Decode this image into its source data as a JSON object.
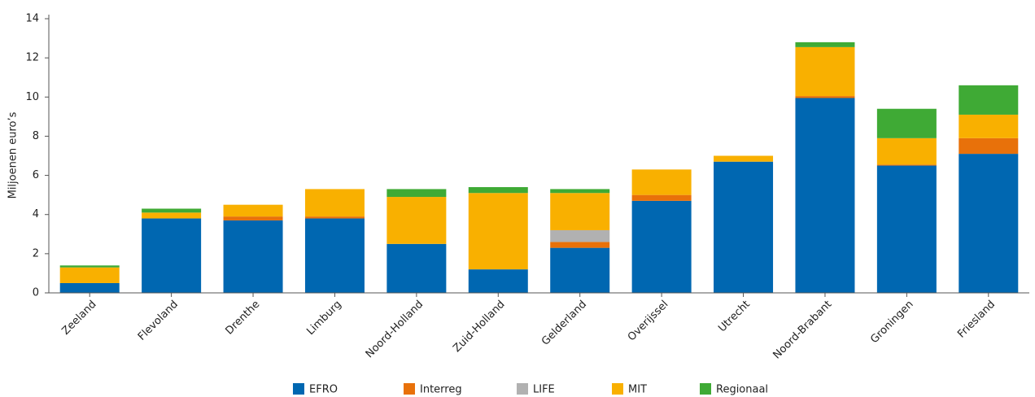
{
  "chart_data": {
    "type": "stacked_bar",
    "ylabel": "Miljoenen euro’s",
    "categories": [
      "Zeeland",
      "Flevoland",
      "Drenthe",
      "Limburg",
      "Noord-Holland",
      "Zuid-Holland",
      "Gelderland",
      "Overijssel",
      "Utrecht",
      "Noord-Brabant",
      "Groningen",
      "Friesland"
    ],
    "series": [
      {
        "name": "EFRO",
        "color": "#0067b1",
        "values": [
          0.5,
          3.8,
          3.7,
          3.8,
          2.5,
          1.2,
          2.3,
          4.7,
          6.7,
          9.95,
          6.5,
          7.1
        ]
      },
      {
        "name": "Interreg",
        "color": "#e8710a",
        "values": [
          0,
          0,
          0.2,
          0.1,
          0,
          0,
          0.3,
          0.3,
          0,
          0.1,
          0.05,
          0.8
        ]
      },
      {
        "name": "LIFE",
        "color": "#b1b1b1",
        "values": [
          0,
          0,
          0,
          0,
          0,
          0,
          0.6,
          0,
          0,
          0,
          0,
          0
        ]
      },
      {
        "name": "MIT",
        "color": "#f9b000",
        "values": [
          0.8,
          0.3,
          0.6,
          1.4,
          2.4,
          3.9,
          1.9,
          1.3,
          0.3,
          2.5,
          1.35,
          1.2
        ]
      },
      {
        "name": "Regionaal",
        "color": "#3faa35",
        "values": [
          0.1,
          0.2,
          0,
          0,
          0.4,
          0.3,
          0.2,
          0,
          0,
          0.25,
          1.5,
          1.5
        ]
      }
    ],
    "ylim": [
      0,
      14
    ],
    "yticks": [
      0,
      2,
      4,
      6,
      8,
      10,
      12,
      14
    ],
    "grid": false,
    "legend": "bottom"
  }
}
